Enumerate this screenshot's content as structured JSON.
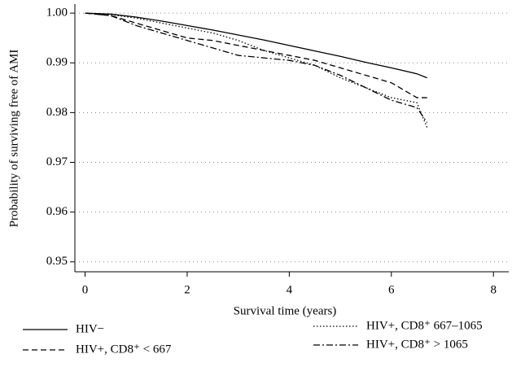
{
  "chart_data": {
    "type": "line",
    "x_label": "Survival time (years)",
    "y_label": "Probability of surviving free of AMI",
    "x": [
      0,
      0.5,
      1,
      1.5,
      2,
      2.5,
      3,
      3.5,
      4,
      4.5,
      5,
      5.5,
      6,
      6.5,
      6.7
    ],
    "series": [
      {
        "name": "HIV−",
        "color": "#000000",
        "linestyle": "solid",
        "values": [
          1,
          0.9998,
          0.9992,
          0.9984,
          0.9975,
          0.9966,
          0.9956,
          0.9946,
          0.9935,
          0.9924,
          0.9913,
          0.9901,
          0.989,
          0.9878,
          0.987
        ]
      },
      {
        "name": "HIV+, CD8⁺ < 667",
        "color": "#000000",
        "linestyle": "dashed",
        "values": [
          1,
          0.9995,
          0.998,
          0.9965,
          0.995,
          0.9945,
          0.9935,
          0.9925,
          0.9915,
          0.9905,
          0.989,
          0.9875,
          0.986,
          0.983,
          0.983
        ]
      },
      {
        "name": "HIV+, CD8⁺ 667–1065",
        "color": "#000000",
        "linestyle": "dotted",
        "values": [
          1,
          0.9997,
          0.999,
          0.998,
          0.997,
          0.996,
          0.9945,
          0.9925,
          0.991,
          0.9895,
          0.987,
          0.985,
          0.983,
          0.982,
          0.977
        ]
      },
      {
        "name": "HIV+, CD8⁺ > 1065",
        "color": "#000000",
        "linestyle": "dashdot",
        "values": [
          1,
          0.9995,
          0.9975,
          0.996,
          0.9945,
          0.993,
          0.9915,
          0.991,
          0.9905,
          0.9895,
          0.9875,
          0.985,
          0.9825,
          0.981,
          0.978
        ]
      }
    ],
    "xlim": [
      -0.2,
      8.3
    ],
    "xticks": [
      0,
      2,
      4,
      6,
      8
    ],
    "ylim": [
      0.948,
      1.001
    ],
    "yticks": [
      0.95,
      0.96,
      0.97,
      0.98,
      0.99,
      {
        "value": 1,
        "label": "1.00"
      }
    ],
    "grid": true
  }
}
